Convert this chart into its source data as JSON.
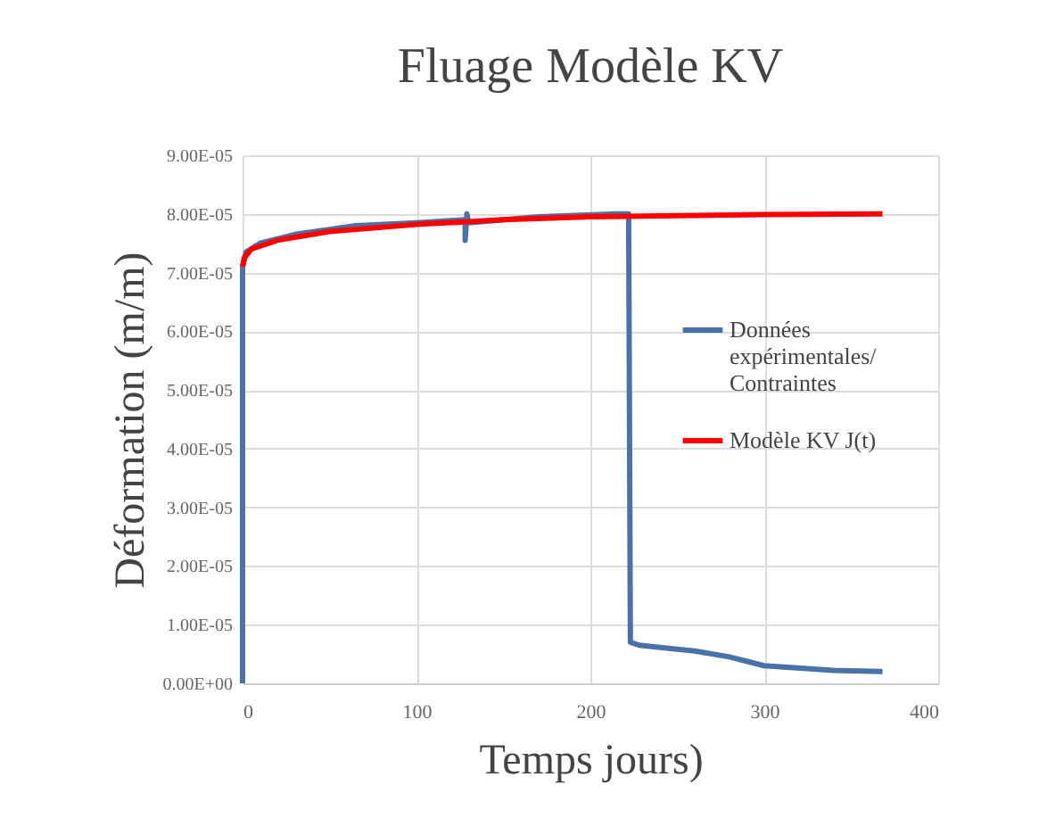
{
  "chart_data": {
    "type": "line",
    "title": "Fluage Modèle KV",
    "xlabel": "Temps jours)",
    "ylabel": "Déformation (m/m)",
    "xlim": [
      0,
      400
    ],
    "xticks": [
      0,
      100,
      200,
      300,
      400
    ],
    "ylim": [
      0,
      9e-05
    ],
    "yticks": [
      {
        "value": 0,
        "label": "0.00E+00"
      },
      {
        "value": 1e-05,
        "label": "1.00E-05"
      },
      {
        "value": 2e-05,
        "label": "2.00E-05"
      },
      {
        "value": 3e-05,
        "label": "3.00E-05"
      },
      {
        "value": 4e-05,
        "label": "4.00E-05"
      },
      {
        "value": 5e-05,
        "label": "5.00E-05"
      },
      {
        "value": 6e-05,
        "label": "6.00E-05"
      },
      {
        "value": 7e-05,
        "label": "7.00E-05"
      },
      {
        "value": 8e-05,
        "label": "8.00E-05"
      },
      {
        "value": 9e-05,
        "label": "9.00E-05"
      }
    ],
    "grid": true,
    "legend": "right",
    "marker": "none",
    "series": [
      {
        "name": "Données expérimentales/ Contraintes",
        "color": "#4a72a8",
        "x": [
          0,
          0,
          2,
          10,
          30,
          65,
          100,
          128,
          128,
          129,
          130,
          170,
          215,
          222,
          223,
          228,
          260,
          280,
          300,
          340,
          368
        ],
        "values": [
          0,
          7.1e-05,
          7.35e-05,
          7.5e-05,
          7.65e-05,
          7.8e-05,
          7.85e-05,
          7.9e-05,
          7.55e-05,
          8e-05,
          7.85e-05,
          7.95e-05,
          8e-05,
          8e-05,
          7e-06,
          6.5e-06,
          5.5e-06,
          4.5e-06,
          3e-06,
          2.2e-06,
          2e-06
        ]
      },
      {
        "name": "Modèle KV J(t)",
        "color": "#ff0000",
        "x": [
          0,
          1,
          5,
          20,
          50,
          100,
          150,
          200,
          250,
          300,
          368
        ],
        "values": [
          7.1e-05,
          7.25e-05,
          7.4e-05,
          7.55e-05,
          7.7e-05,
          7.82e-05,
          7.9e-05,
          7.95e-05,
          7.97e-05,
          7.99e-05,
          8e-05
        ]
      }
    ]
  }
}
